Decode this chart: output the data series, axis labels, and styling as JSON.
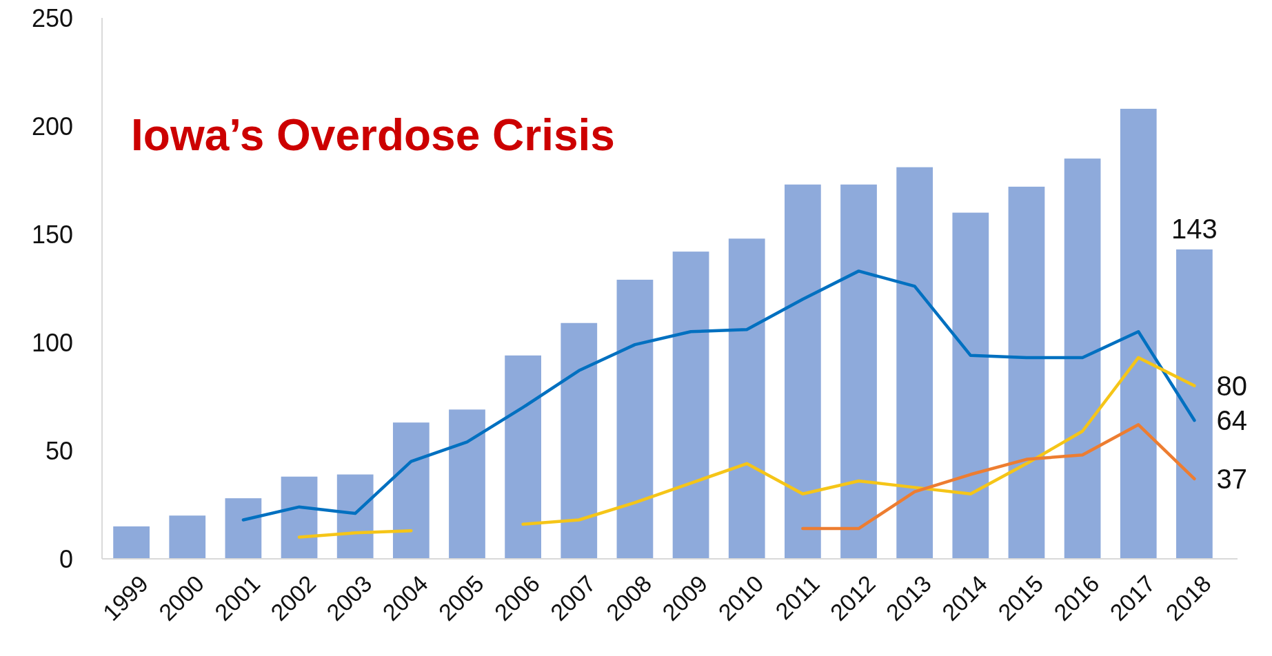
{
  "chart_data": {
    "type": "bar",
    "title": "Iowa’s Overdose Crisis",
    "categories": [
      "1999",
      "2000",
      "2001",
      "2002",
      "2003",
      "2004",
      "2005",
      "2006",
      "2007",
      "2008",
      "2009",
      "2010",
      "2011",
      "2012",
      "2013",
      "2014",
      "2015",
      "2016",
      "2017",
      "2018"
    ],
    "series": [
      {
        "color": "#8eaadb",
        "values": [
          15,
          20,
          28,
          38,
          39,
          63,
          69,
          94,
          109,
          129,
          142,
          148,
          173,
          173,
          181,
          160,
          172,
          185,
          208,
          143
        ],
        "value_labels": [
          null,
          null,
          null,
          null,
          null,
          null,
          null,
          null,
          null,
          null,
          null,
          null,
          null,
          null,
          null,
          null,
          null,
          null,
          null,
          "143"
        ]
      },
      {
        "type": "line",
        "color": "#0070c0",
        "values": [
          null,
          null,
          18,
          24,
          21,
          45,
          54,
          70,
          87,
          99,
          105,
          106,
          120,
          133,
          126,
          94,
          93,
          93,
          105,
          64
        ],
        "value_labels": [
          null,
          null,
          null,
          null,
          null,
          null,
          null,
          null,
          null,
          null,
          null,
          null,
          null,
          null,
          null,
          null,
          null,
          null,
          null,
          "64"
        ]
      },
      {
        "type": "line",
        "color": "#f5c518",
        "values": [
          null,
          null,
          null,
          10,
          12,
          13,
          null,
          16,
          18,
          26,
          35,
          44,
          30,
          36,
          33,
          30,
          44,
          59,
          93,
          80
        ],
        "value_labels": [
          null,
          null,
          null,
          null,
          null,
          null,
          null,
          null,
          null,
          null,
          null,
          null,
          null,
          null,
          null,
          null,
          null,
          null,
          null,
          "80"
        ]
      },
      {
        "type": "line",
        "color": "#ed7d31",
        "values": [
          null,
          null,
          null,
          null,
          null,
          null,
          null,
          null,
          null,
          null,
          null,
          null,
          14,
          14,
          31,
          39,
          46,
          48,
          62,
          37
        ],
        "value_labels": [
          null,
          null,
          null,
          null,
          null,
          null,
          null,
          null,
          null,
          null,
          null,
          null,
          null,
          null,
          null,
          null,
          null,
          null,
          null,
          "37"
        ]
      }
    ],
    "ylim": [
      0,
      250
    ],
    "yticks": [
      0,
      50,
      100,
      150,
      200,
      250
    ],
    "grid": false,
    "marker": "none",
    "line_style": "solid"
  }
}
